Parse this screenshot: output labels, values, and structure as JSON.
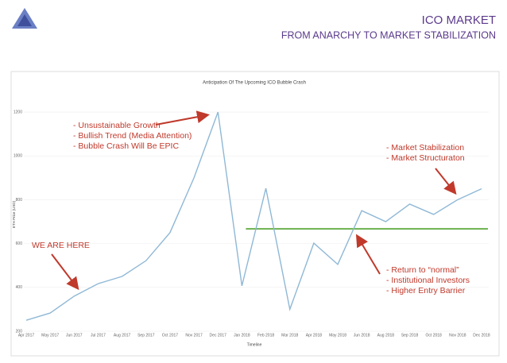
{
  "header": {
    "title": "ICO MARKET",
    "subtitle": "FROM ANARCHY TO MARKET STABILIZATION"
  },
  "chart_data": {
    "type": "line",
    "title": "Anticipation Of The Upcoming ICO Bubble Crash",
    "x_label": "Timeline",
    "y_label": "ETH Price (USD)",
    "categories": [
      "Apr 2017",
      "May 2017",
      "Jun 2017",
      "Jul 2017",
      "Aug 2017",
      "Sep 2017",
      "Oct 2017",
      "Nov 2017",
      "Dec 2017",
      "Jan 2018",
      "Feb 2018",
      "Mar 2018",
      "Apr 2018",
      "May 2018",
      "Jun 2018",
      "Aug 2018",
      "Sep 2018",
      "Oct 2018",
      "Nov 2018",
      "Dec 2018"
    ],
    "series": [
      {
        "name": "ETH Price",
        "color": "#8fb8d6",
        "values": [
          250,
          283,
          360,
          417,
          450,
          522,
          650,
          900,
          1200,
          407,
          852,
          300,
          602,
          505,
          750,
          700,
          780,
          733,
          800,
          850
        ]
      }
    ],
    "reference_line": {
      "value": 667,
      "color": "#6ab04c",
      "from": "Jan 2018"
    },
    "ylim": [
      200,
      1280
    ],
    "yticks": [
      200,
      400,
      600,
      800,
      1000,
      1200
    ],
    "grid": true,
    "annotations": [
      [
        "- Unsustainable Growth",
        "- Bullish Trend (Media Attention)",
        "- Bubble Crash Will Be EPIC"
      ],
      [
        "WE ARE HERE"
      ],
      [
        "- Market Stabilization",
        "- Market Structuraton"
      ],
      [
        "- Return to “normal”",
        "- Institutional Investors",
        "- Higher Entry Barrier"
      ]
    ]
  }
}
